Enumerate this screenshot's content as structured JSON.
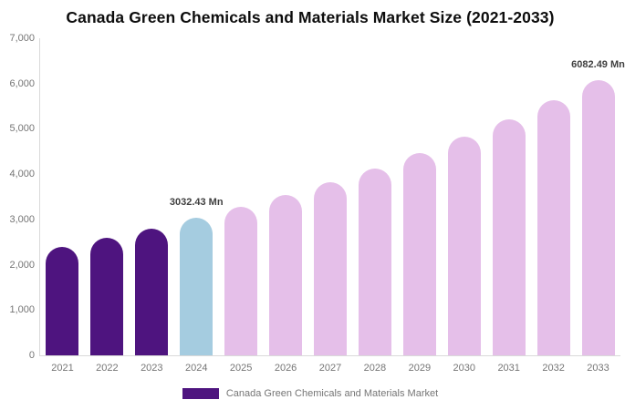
{
  "title": "Canada Green Chemicals and Materials Market Size (2021-2033)",
  "chart_data": {
    "type": "bar",
    "title": "Canada Green Chemicals and Materials Market Size (2021-2033)",
    "categories": [
      "2021",
      "2022",
      "2023",
      "2024",
      "2025",
      "2026",
      "2027",
      "2028",
      "2029",
      "2030",
      "2031",
      "2032",
      "2033"
    ],
    "values": [
      2404.5,
      2597.9,
      2806.8,
      3032.43,
      3276.2,
      3539.7,
      3824.3,
      4131.9,
      4464.2,
      4823.2,
      5211.1,
      5630.3,
      6082.49
    ],
    "unit": "Mn",
    "data_labels": [
      "",
      "",
      "",
      "3032.43 Mn",
      "",
      "",
      "",
      "",
      "",
      "",
      "",
      "",
      "6082.49 Mn"
    ],
    "bar_colors": [
      "#4E147F",
      "#4E147F",
      "#4E147F",
      "#A5CCE0",
      "#E5BFE9",
      "#E5BFE9",
      "#E5BFE9",
      "#E5BFE9",
      "#E5BFE9",
      "#E5BFE9",
      "#E5BFE9",
      "#E5BFE9",
      "#E5BFE9"
    ],
    "xlabel": "",
    "ylabel": "",
    "ylim": [
      0,
      7000
    ],
    "ytick_labels": [
      "7,000",
      "6,000",
      "5,000",
      "4,000",
      "3,000",
      "2,000",
      "1,000",
      "0"
    ],
    "ytick_values": [
      7000,
      6000,
      5000,
      4000,
      3000,
      2000,
      1000,
      0
    ],
    "grid": "off",
    "legend_position": "bottom"
  },
  "legend": {
    "label": "Canada Green Chemicals and Materials Market",
    "swatch_color": "#4E147F"
  },
  "colors": {
    "historical_bar": "#4E147F",
    "base_year_bar": "#A5CCE0",
    "forecast_bar": "#E5BFE9",
    "axis_line": "#d9d9d9",
    "tick_label": "#757575",
    "data_label": "#3f3f3f",
    "title": "#0d0d0d",
    "background": "#ffffff"
  }
}
